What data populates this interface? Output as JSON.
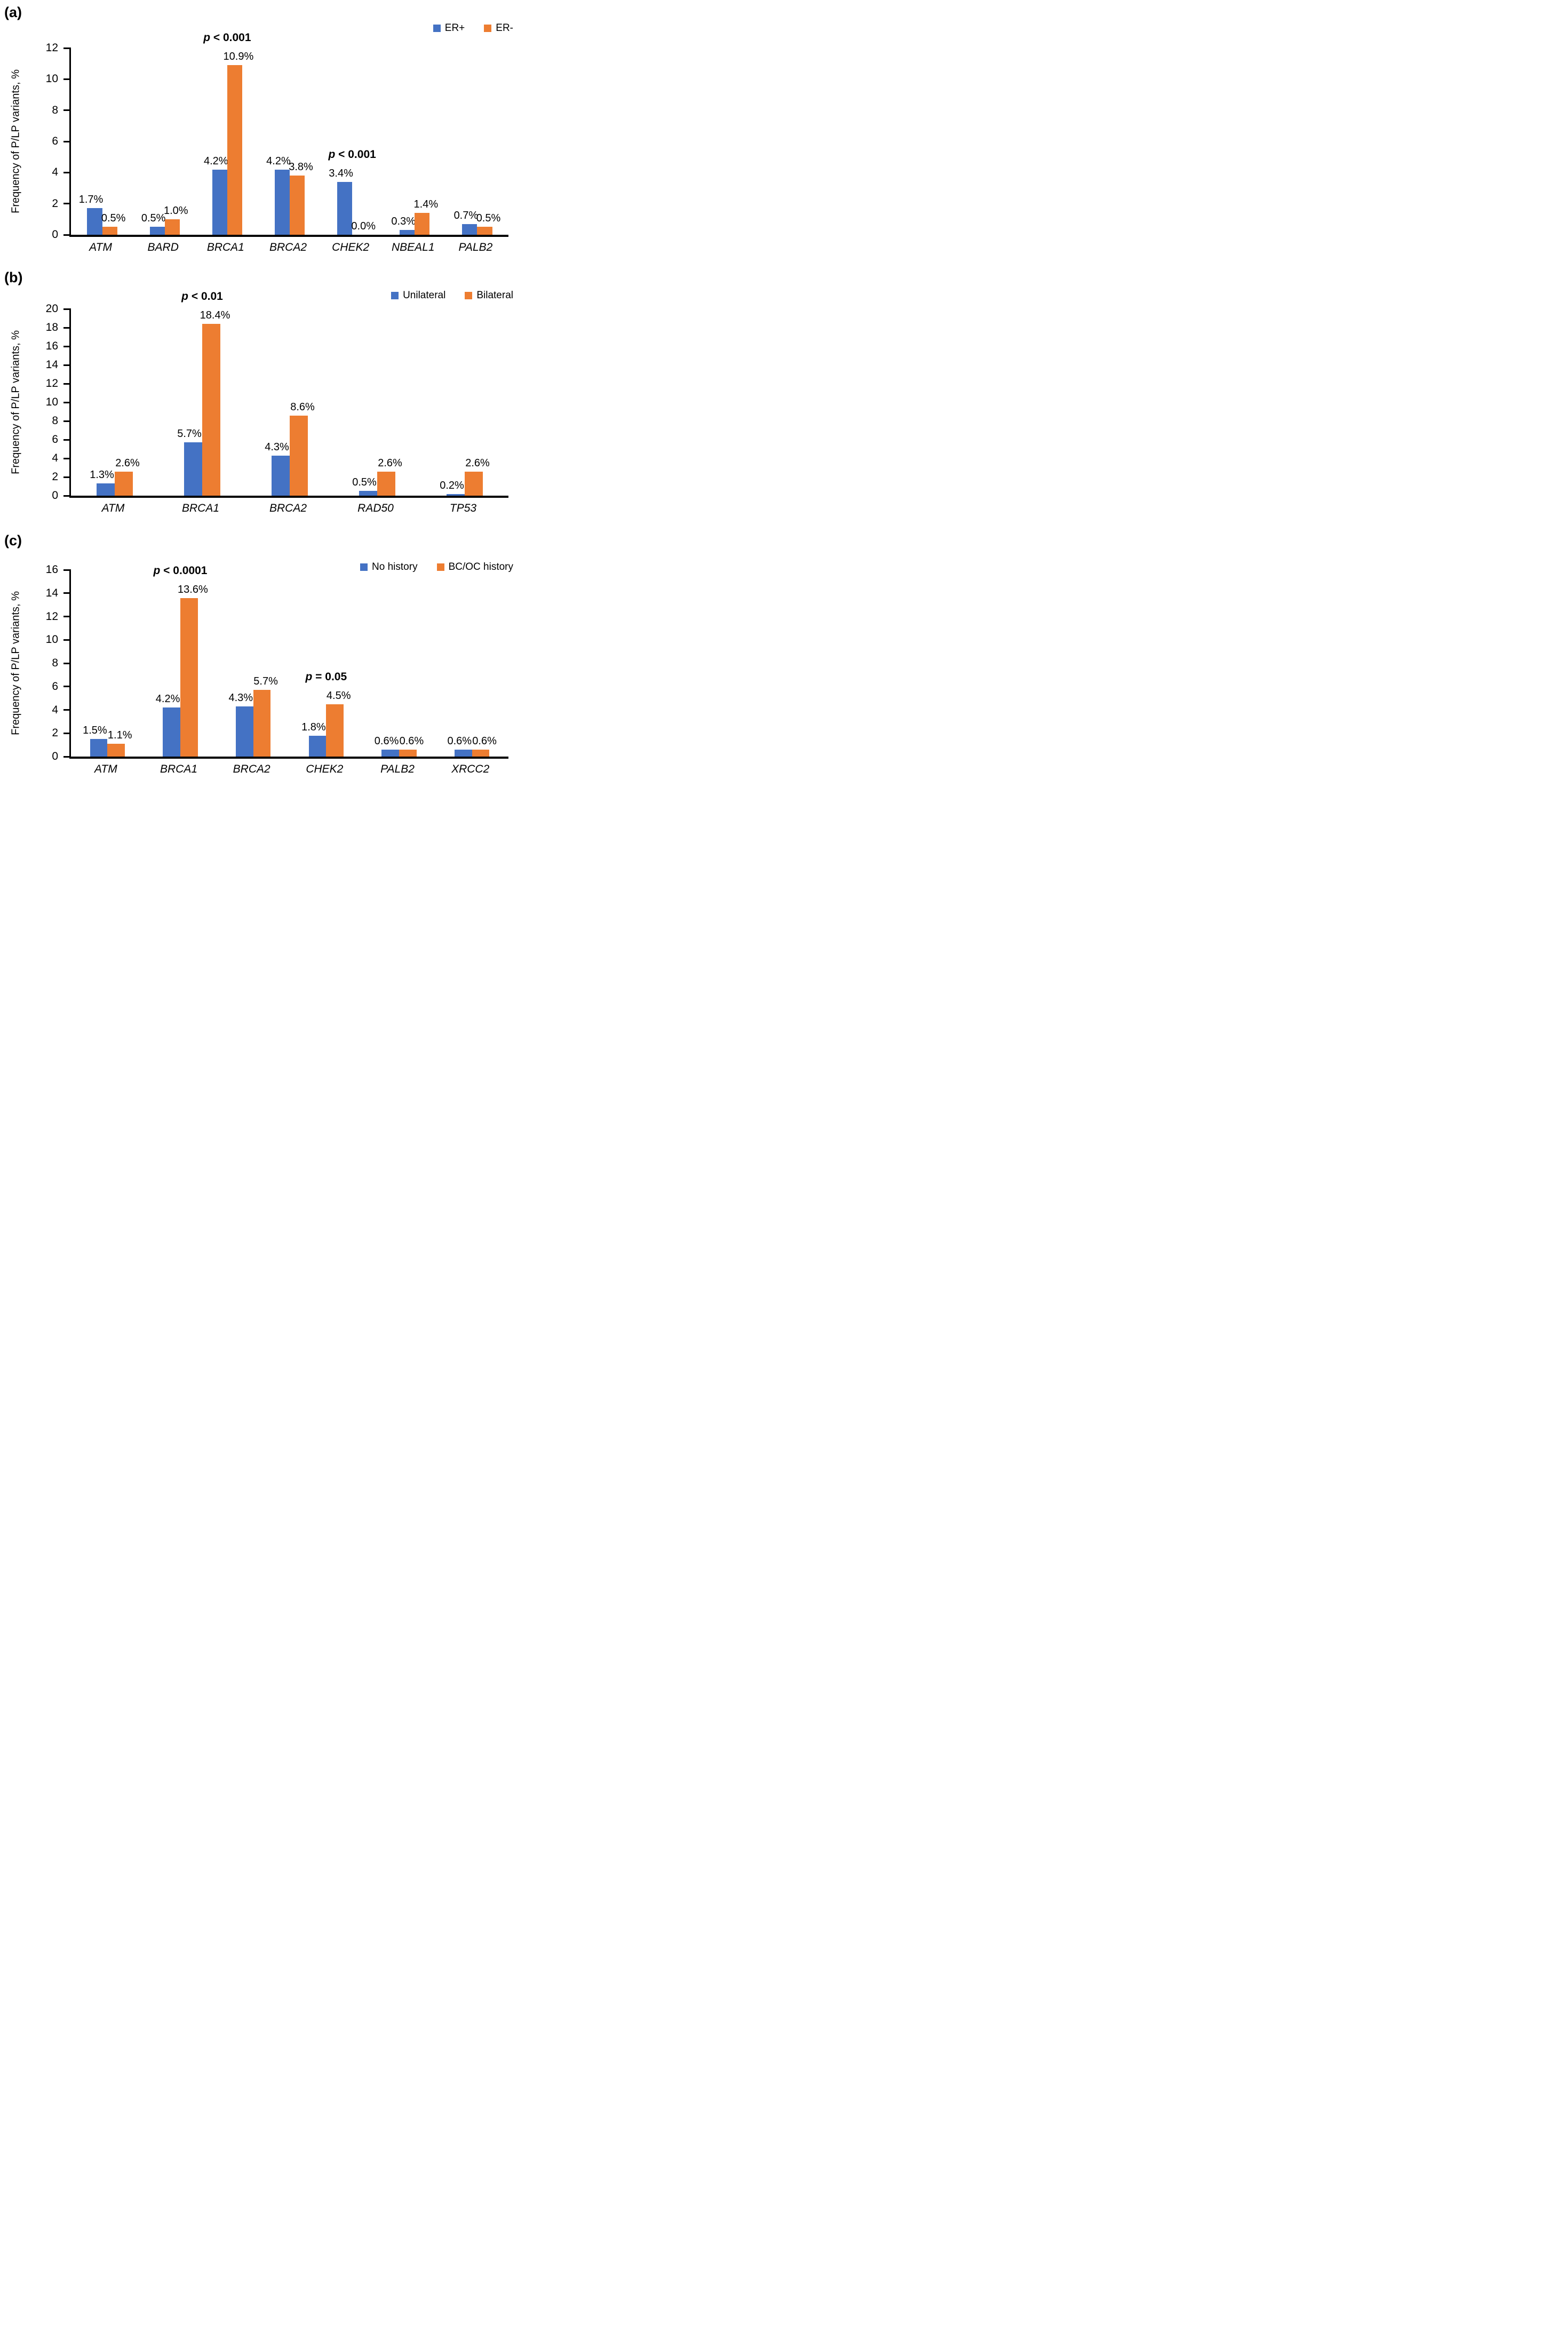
{
  "figure": {
    "background": "#ffffff",
    "axis_color": "#000000",
    "series_colors": {
      "blue": "#4472C4",
      "orange": "#ED7D31"
    }
  },
  "chart_data": [
    {
      "type": "bar",
      "panel_label": "(a)",
      "title": "",
      "xlabel": "",
      "ylabel": "Frequency of P/LP variants, %",
      "ylim": [
        0,
        12
      ],
      "yticks": [
        0,
        2,
        4,
        6,
        8,
        10,
        12
      ],
      "grid": false,
      "legend_position": "top-right",
      "categories": [
        "ATM",
        "BARD",
        "BRCA1",
        "BRCA2",
        "CHEK2",
        "NBEAL1",
        "PALB2"
      ],
      "series": [
        {
          "name": "ER+",
          "color": "#4472C4",
          "values": [
            1.7,
            0.5,
            4.2,
            4.2,
            3.4,
            0.3,
            0.7
          ],
          "value_labels": [
            "1.7%",
            "0.5%",
            "4.2%",
            "4.2%",
            "3.4%",
            "0.3%",
            "0.7%"
          ]
        },
        {
          "name": "ER-",
          "color": "#ED7D31",
          "values": [
            0.5,
            1.0,
            10.9,
            3.8,
            0.0,
            1.4,
            0.5
          ],
          "value_labels": [
            "0.5%",
            "1.0%",
            "10.9%",
            "3.8%",
            "0.0%",
            "1.4%",
            "0.5%"
          ]
        }
      ],
      "annotations": [
        {
          "text": "p < 0.001",
          "category": "BRCA1"
        },
        {
          "text": "p < 0.001",
          "category": "CHEK2"
        }
      ]
    },
    {
      "type": "bar",
      "panel_label": "(b)",
      "title": "",
      "xlabel": "",
      "ylabel": "Frequency of P/LP variants, %",
      "ylim": [
        0,
        20
      ],
      "yticks": [
        0,
        2,
        4,
        6,
        8,
        10,
        12,
        14,
        16,
        18,
        20
      ],
      "grid": false,
      "legend_position": "top-right",
      "categories": [
        "ATM",
        "BRCA1",
        "BRCA2",
        "RAD50",
        "TP53"
      ],
      "series": [
        {
          "name": "Unilateral",
          "color": "#4472C4",
          "values": [
            1.3,
            5.7,
            4.3,
            0.5,
            0.2
          ],
          "value_labels": [
            "1.3%",
            "5.7%",
            "4.3%",
            "0.5%",
            "0.2%"
          ]
        },
        {
          "name": "Bilateral",
          "color": "#ED7D31",
          "values": [
            2.6,
            18.4,
            8.6,
            2.6,
            2.6
          ],
          "value_labels": [
            "2.6%",
            "18.4%",
            "8.6%",
            "2.6%",
            "2.6%"
          ]
        }
      ],
      "annotations": [
        {
          "text": "p < 0.01",
          "category": "BRCA1"
        }
      ]
    },
    {
      "type": "bar",
      "panel_label": "(c)",
      "title": "",
      "xlabel": "",
      "ylabel": "Frequency of P/LP variants, %",
      "ylim": [
        0,
        16
      ],
      "yticks": [
        0,
        2,
        4,
        6,
        8,
        10,
        12,
        14,
        16
      ],
      "grid": false,
      "legend_position": "top-right",
      "categories": [
        "ATM",
        "BRCA1",
        "BRCA2",
        "CHEK2",
        "PALB2",
        "XRCC2"
      ],
      "series": [
        {
          "name": "No history",
          "color": "#4472C4",
          "values": [
            1.5,
            4.2,
            4.3,
            1.8,
            0.6,
            0.6
          ],
          "value_labels": [
            "1.5%",
            "4.2%",
            "4.3%",
            "1.8%",
            "0.6%",
            "0.6%"
          ]
        },
        {
          "name": "BC/OC history",
          "color": "#ED7D31",
          "values": [
            1.1,
            13.6,
            5.7,
            4.5,
            0.6,
            0.6
          ],
          "value_labels": [
            "1.1%",
            "13.6%",
            "5.7%",
            "4.5%",
            "0.6%",
            "0.6%"
          ]
        }
      ],
      "annotations": [
        {
          "text": "p < 0.0001",
          "category": "BRCA1"
        },
        {
          "text": "p = 0.05",
          "category": "CHEK2"
        }
      ]
    }
  ]
}
